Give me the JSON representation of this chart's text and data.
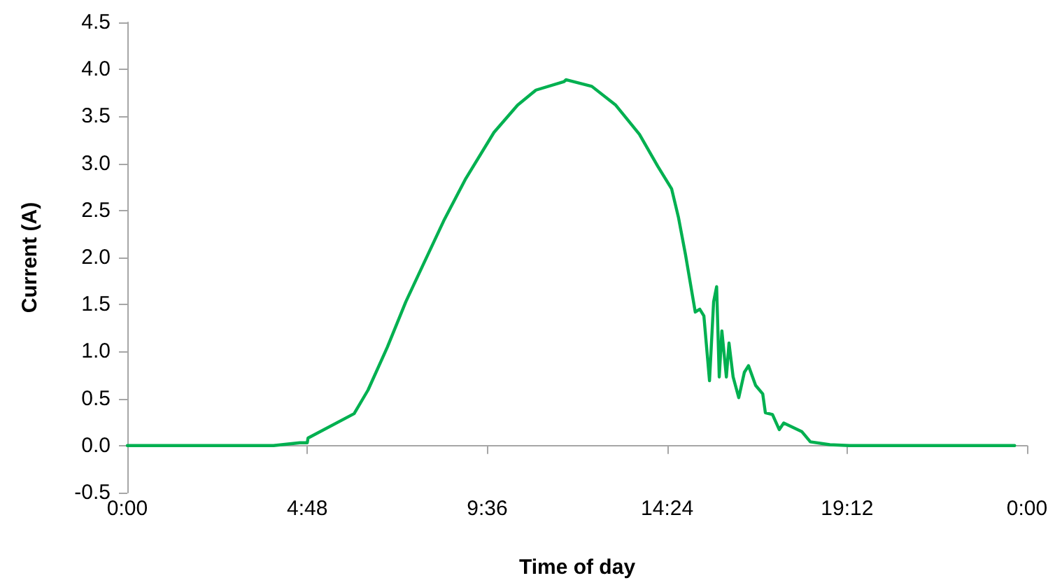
{
  "chart_data": {
    "type": "line",
    "xlabel": "Time of day",
    "ylabel": "Current (A)",
    "x": [
      0,
      3.9,
      4.6,
      4.8,
      4.82,
      6.05,
      6.42,
      6.94,
      7.43,
      7.91,
      8.44,
      9.03,
      9.78,
      10.41,
      10.9,
      11.65,
      11.7,
      12.39,
      13.03,
      13.66,
      14.15,
      14.52,
      14.7,
      14.89,
      15.15,
      15.27,
      15.38,
      15.53,
      15.64,
      15.72,
      15.79,
      15.86,
      15.98,
      16.05,
      16.16,
      16.31,
      16.46,
      16.57,
      16.76,
      16.95,
      17.02,
      17.21,
      17.39,
      17.51,
      17.99,
      18.22,
      18.74,
      19.26,
      23.67
    ],
    "series": [
      {
        "color": "#00b050",
        "values": [
          0,
          0,
          0.03,
          0.03,
          0.08,
          0.34,
          0.59,
          1.05,
          1.53,
          1.94,
          2.39,
          2.84,
          3.33,
          3.62,
          3.78,
          3.87,
          3.89,
          3.82,
          3.62,
          3.31,
          2.97,
          2.73,
          2.43,
          2.03,
          1.42,
          1.45,
          1.38,
          0.69,
          1.53,
          1.69,
          0.73,
          1.22,
          0.73,
          1.09,
          0.73,
          0.51,
          0.78,
          0.85,
          0.64,
          0.55,
          0.35,
          0.33,
          0.17,
          0.24,
          0.15,
          0.04,
          0.01,
          0,
          0
        ]
      }
    ],
    "xlim": [
      0,
      24
    ],
    "xticks": [
      {
        "value": 0,
        "label": "0:00"
      },
      {
        "value": 4.8,
        "label": "4:48"
      },
      {
        "value": 9.6,
        "label": "9:36"
      },
      {
        "value": 14.4,
        "label": "14:24"
      },
      {
        "value": 19.2,
        "label": "19:12"
      },
      {
        "value": 24,
        "label": "0:00"
      }
    ],
    "ylim": [
      -0.5,
      4.5
    ],
    "yticks": [
      {
        "value": -0.5,
        "label": "-0.5"
      },
      {
        "value": 0,
        "label": "0.0"
      },
      {
        "value": 0.5,
        "label": "0.5"
      },
      {
        "value": 1,
        "label": "1.0"
      },
      {
        "value": 1.5,
        "label": "1.5"
      },
      {
        "value": 2,
        "label": "2.0"
      },
      {
        "value": 2.5,
        "label": "2.5"
      },
      {
        "value": 3,
        "label": "3.0"
      },
      {
        "value": 3.5,
        "label": "3.5"
      },
      {
        "value": 4,
        "label": "4.0"
      },
      {
        "value": 4.5,
        "label": "4.5"
      }
    ],
    "marker": "none",
    "line_style": "solid"
  }
}
